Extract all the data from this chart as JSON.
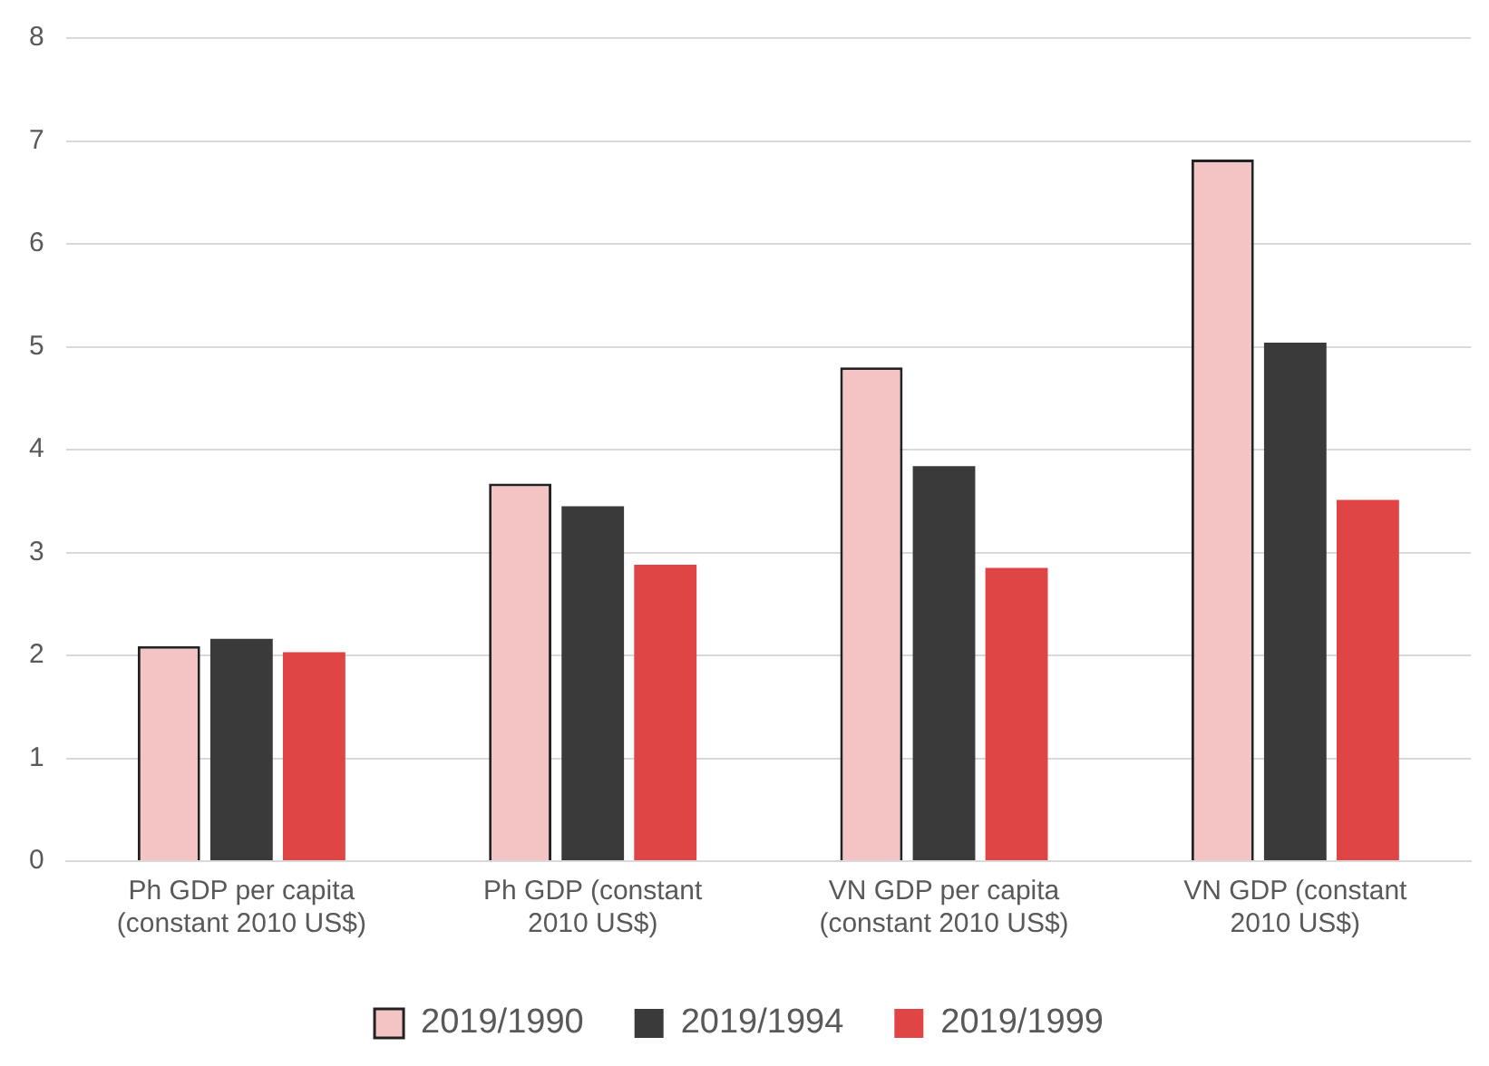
{
  "chart_data": {
    "type": "bar",
    "categories": [
      "Ph GDP per capita (constant 2010 US$)",
      "Ph GDP (constant 2010 US$)",
      "VN GDP per capita (constant 2010 US$)",
      "VN GDP (constant 2010 US$)"
    ],
    "series": [
      {
        "name": "2019/1990",
        "color": "#f4c4c4",
        "values": [
          2.09,
          3.67,
          4.8,
          6.82
        ]
      },
      {
        "name": "2019/1994",
        "color": "#3a3a3a",
        "values": [
          2.16,
          3.45,
          3.84,
          5.04
        ]
      },
      {
        "name": "2019/1999",
        "color": "#e04545",
        "values": [
          2.03,
          2.88,
          2.85,
          3.51
        ]
      }
    ],
    "ylim": [
      0,
      8
    ],
    "yticks": [
      0,
      1,
      2,
      3,
      4,
      5,
      6,
      7,
      8
    ],
    "grid": "y",
    "legend": "bottom"
  }
}
